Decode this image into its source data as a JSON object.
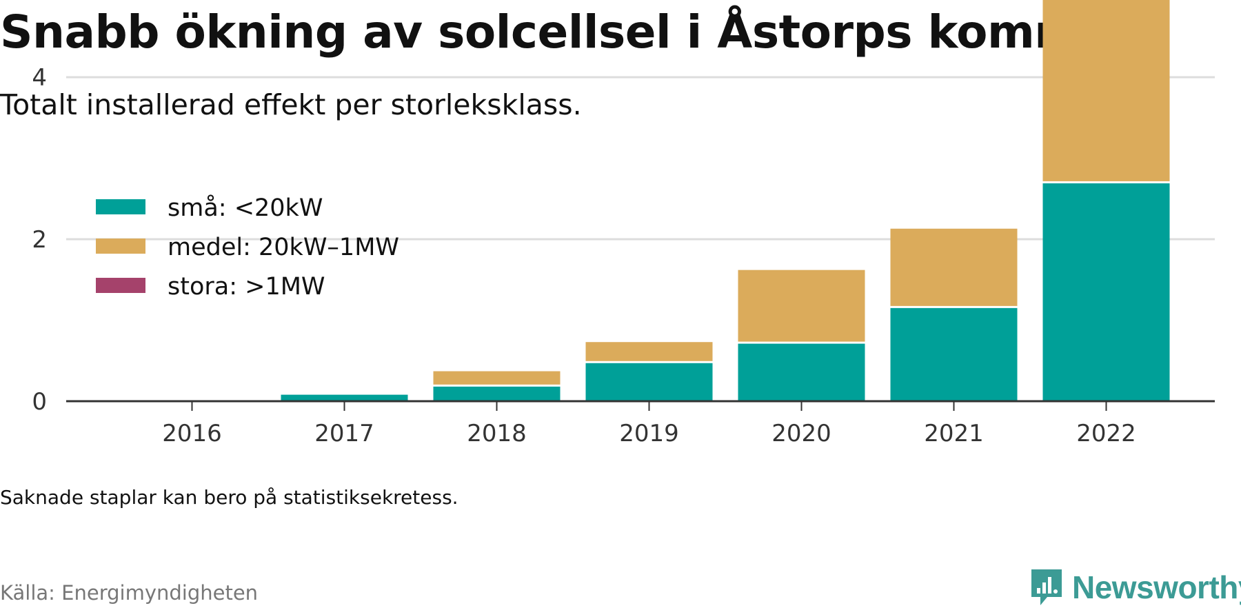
{
  "title": "Snabb ökning av solcellsel i Åstorps kommun",
  "subtitle": "Totalt installerad effekt per storleksklass.",
  "note": "Saknade staplar kan bero på statistiksekretess.",
  "source": "Källa: Energimyndigheten",
  "brand": {
    "name": "Newsworthy",
    "icon": "newsworthy-logo-icon",
    "color": "#3c9b95"
  },
  "chart_data": {
    "type": "bar",
    "stacked": true,
    "categories": [
      "2016",
      "2017",
      "2018",
      "2019",
      "2020",
      "2021",
      "2022"
    ],
    "series": [
      {
        "name": "små: <20kW",
        "color": "#00a098",
        "values": [
          0.0,
          0.08,
          0.18,
          0.47,
          0.71,
          1.15,
          2.69
        ]
      },
      {
        "name": "medel: 20kW–1MW",
        "color": "#dbab5b",
        "values": [
          0.0,
          0.0,
          0.19,
          0.26,
          0.91,
          0.98,
          2.27
        ]
      },
      {
        "name": "stora: >1MW",
        "color": "#a5426b",
        "values": [
          0,
          0,
          0,
          0,
          0,
          0,
          0
        ]
      }
    ],
    "yticks": [
      0,
      2,
      4
    ],
    "ylim": [
      0,
      5.1
    ],
    "grid": true,
    "legend": "top-left"
  }
}
